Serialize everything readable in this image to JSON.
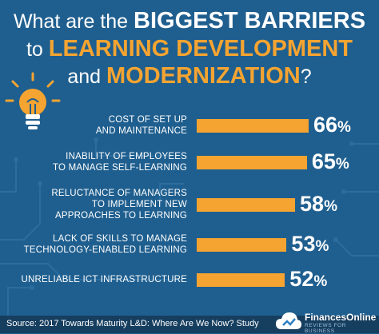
{
  "title": {
    "line1_plain": "What are the",
    "line1_bold": "BIGGEST BARRIERS",
    "line2_plain": "to",
    "line2_bold": "LEARNING DEVELOPMENT",
    "line3_plain": "and",
    "line3_bold": "MODERNIZATION",
    "line3_end": "?"
  },
  "colors": {
    "background": "#1f5f8f",
    "accent": "#f5a431",
    "footer": "#163e5f",
    "text": "#ffffff"
  },
  "icons": {
    "header_icon": "lightbulb-icon",
    "logo_icon": "cloud-logo-icon"
  },
  "chart_data": {
    "type": "bar",
    "orientation": "horizontal",
    "categories": [
      "COST OF SET UP\nAND MAINTENANCE",
      "INABILITY OF EMPLOYEES\nTO MANAGE SELF-LEARNING",
      "RELUCTANCE OF MANAGERS\nTO IMPLEMENT NEW\nAPPROACHES TO LEARNING",
      "LACK OF SKILLS TO MANAGE\nTECHNOLOGY-ENABLED LEARNING",
      "UNRELIABLE ICT INFRASTRUCTURE"
    ],
    "values": [
      66,
      65,
      58,
      53,
      52
    ],
    "value_labels": [
      "66",
      "65",
      "58",
      "53",
      "52"
    ],
    "value_suffix": "%",
    "xlim": [
      0,
      100
    ],
    "grid": false,
    "legend": "none"
  },
  "footer": {
    "source": "Source: 2017 Towards Maturity L&D: Where Are We Now? Study",
    "logo_name": "FinancesOnline",
    "logo_tagline": "REVIEWS FOR BUSINESS"
  }
}
